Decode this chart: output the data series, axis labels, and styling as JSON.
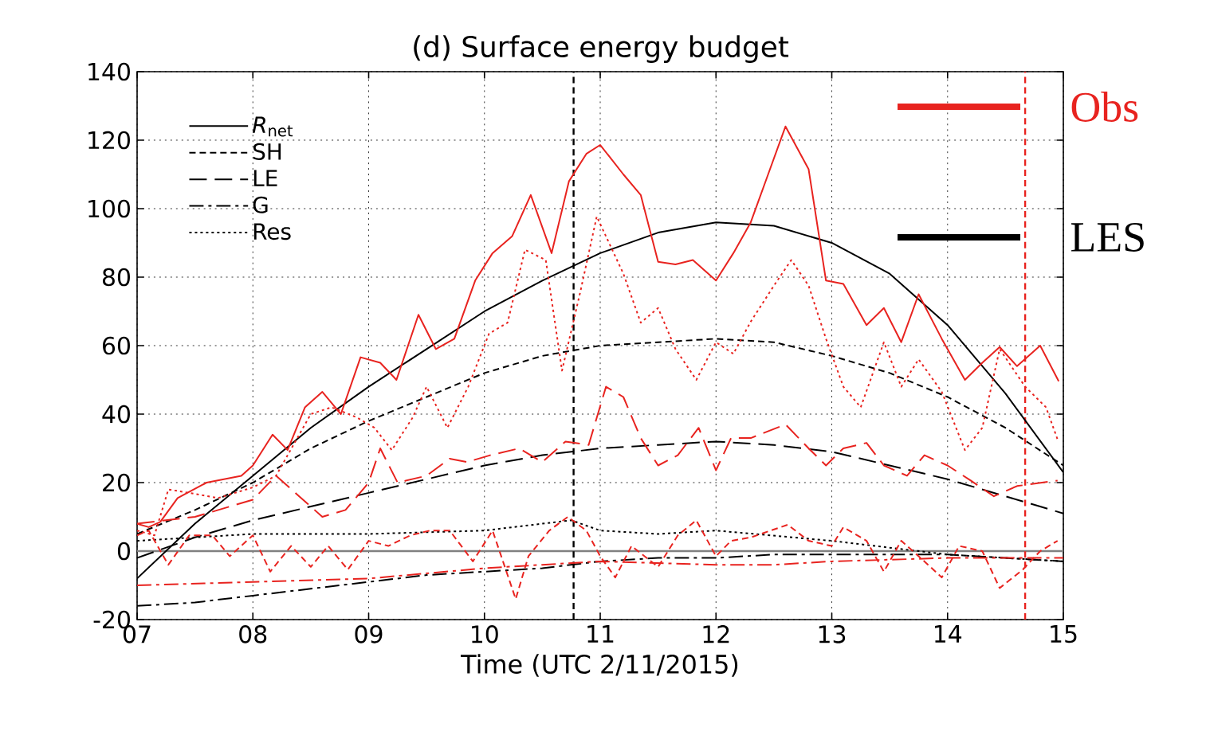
{
  "chart_data": {
    "type": "line",
    "title": "(d) Surface energy budget",
    "xlabel": "Time (UTC 2/11/2015)",
    "xlim": [
      7,
      15
    ],
    "ylim": [
      -20,
      140
    ],
    "xticks": [
      {
        "value": 7,
        "label": "07"
      },
      {
        "value": 8,
        "label": "08"
      },
      {
        "value": 9,
        "label": "09"
      },
      10,
      11,
      12,
      13,
      14,
      15
    ],
    "yticks": [
      -20,
      0,
      20,
      40,
      60,
      80,
      100,
      120,
      140
    ],
    "grid": true,
    "legend": "top left",
    "annotations": [
      "Obs",
      "LES"
    ],
    "ref_lines": [
      {
        "axis": "y",
        "value": 0,
        "color": "#808080",
        "line_style": "solid"
      },
      {
        "axis": "x",
        "value": 10.77,
        "color": "#000000",
        "line_style": "dashed"
      },
      {
        "axis": "x",
        "value": 14.67,
        "color": "#e8231f",
        "line_style": "dashed"
      }
    ],
    "series": [
      {
        "name": "*R*$_{net}$",
        "color": "#000000",
        "line_style": "solid",
        "x": [
          7,
          7.5,
          8,
          8.5,
          9,
          9.5,
          10,
          10.5,
          11,
          11.5,
          12,
          12.5,
          13,
          13.5,
          14,
          14.5,
          15
        ],
        "values": [
          -8,
          8,
          22,
          36,
          48,
          59,
          70,
          79,
          87,
          93,
          96,
          95,
          90,
          81,
          66,
          46,
          23
        ]
      },
      {
        "name": "SH",
        "color": "#000000",
        "line_style": "dashed",
        "x": [
          7,
          7.5,
          8,
          8.5,
          9,
          9.5,
          10,
          10.5,
          11,
          11.5,
          12,
          12.5,
          13,
          13.5,
          14,
          14.5,
          15
        ],
        "values": [
          5,
          12,
          20,
          30,
          38,
          45,
          52,
          57,
          60,
          61,
          62,
          61,
          57,
          52,
          45,
          36,
          25
        ]
      },
      {
        "name": "LE",
        "color": "#000000",
        "line_style": "longdashed",
        "x": [
          7,
          7.5,
          8,
          8.5,
          9,
          9.5,
          10,
          10.5,
          11,
          11.5,
          12,
          12.5,
          13,
          13.5,
          14,
          14.5,
          15
        ],
        "values": [
          -2,
          4,
          9,
          13,
          17,
          21,
          25,
          28,
          30,
          31,
          32,
          31,
          29,
          25,
          21,
          16,
          11
        ]
      },
      {
        "name": "G",
        "color": "#000000",
        "line_style": "dashdot",
        "x": [
          7,
          7.5,
          8,
          8.5,
          9,
          9.5,
          10,
          10.5,
          11,
          11.5,
          12,
          12.5,
          13,
          13.5,
          14,
          14.5,
          15
        ],
        "values": [
          -16,
          -15,
          -13,
          -11,
          -9,
          -7,
          -6,
          -5,
          -3,
          -2,
          -2,
          -1,
          -1,
          -1,
          -1,
          -2,
          -3
        ]
      },
      {
        "name": "Res",
        "color": "#000000",
        "line_style": "dotted",
        "x": [
          7,
          8,
          9,
          10,
          10.75,
          11,
          11.5,
          12,
          13,
          14,
          15
        ],
        "values": [
          3,
          5,
          5,
          6,
          9,
          6,
          5,
          6,
          3,
          -1,
          -3
        ]
      },
      {
        "color": "#e8231f",
        "line_style": "solid",
        "x": [
          7,
          7.1,
          7.2,
          7.35,
          7.6,
          7.9,
          8.0,
          8.17,
          8.3,
          8.45,
          8.6,
          8.76,
          8.93,
          9.1,
          9.24,
          9.43,
          9.58,
          9.74,
          9.92,
          10.07,
          10.24,
          10.4,
          10.58,
          10.73,
          10.88,
          11.0,
          11.2,
          11.35,
          11.5,
          11.65,
          11.8,
          12.0,
          12.15,
          12.3,
          12.45,
          12.6,
          12.8,
          12.95,
          13.1,
          13.3,
          13.45,
          13.6,
          13.75,
          13.95,
          14.15,
          14.3,
          14.45,
          14.6,
          14.8,
          14.96
        ],
        "values": [
          8,
          7,
          8.5,
          15.5,
          20,
          22,
          25,
          34,
          29.5,
          42,
          46.5,
          40,
          56.6,
          55,
          50,
          69,
          59,
          62,
          79,
          87,
          92,
          104,
          87,
          108,
          116,
          118.6,
          110,
          104,
          84.5,
          83.7,
          85,
          79,
          87,
          96,
          110,
          124,
          111.5,
          79,
          78,
          66,
          71,
          61,
          75,
          62,
          50,
          55,
          59.6,
          54,
          60,
          49.6
        ]
      },
      {
        "color": "#e8231f",
        "line_style": "dashed",
        "x": [
          7.0,
          7.1,
          7.27,
          7.45,
          7.65,
          7.8,
          8.0,
          8.15,
          8.33,
          8.5,
          8.65,
          8.82,
          9.0,
          9.17,
          9.36,
          9.53,
          9.7,
          9.9,
          10.07,
          10.27,
          10.38,
          10.56,
          10.72,
          10.88,
          11.0,
          11.13,
          11.27,
          11.5,
          11.67,
          11.83,
          12.0,
          12.13,
          12.3,
          12.62,
          12.8,
          13.0,
          13.1,
          13.3,
          13.45,
          13.6,
          13.8,
          13.95,
          14.1,
          14.3,
          14.45,
          14.65,
          14.8,
          14.95
        ],
        "values": [
          4.6,
          6,
          -4,
          4.6,
          4.6,
          -1.5,
          4.6,
          -6,
          1.5,
          -4.6,
          1.5,
          -5.4,
          3,
          1.5,
          4.6,
          6,
          6,
          -3,
          6,
          -14,
          -1.5,
          6,
          10,
          6,
          -1.5,
          -7.7,
          1.5,
          -4.6,
          4.6,
          9,
          -1.5,
          3,
          4,
          7.7,
          3,
          1.5,
          7,
          3,
          -6,
          3,
          -3,
          -7.7,
          1.5,
          0,
          -10.8,
          -5.4,
          0,
          3
        ]
      },
      {
        "color": "#e8231f",
        "line_style": "longdashed",
        "x": [
          7,
          7.5,
          8,
          8.2,
          8.4,
          8.6,
          8.8,
          9.0,
          9.1,
          9.25,
          9.5,
          9.7,
          9.85,
          10.05,
          10.3,
          10.5,
          10.7,
          10.9,
          11.05,
          11.2,
          11.35,
          11.5,
          11.67,
          11.85,
          12.0,
          12.13,
          12.3,
          12.6,
          12.8,
          12.95,
          13.1,
          13.3,
          13.45,
          13.65,
          13.8,
          14.0,
          14.2,
          14.4,
          14.6,
          14.95
        ],
        "values": [
          8,
          10,
          15,
          22,
          16,
          10,
          12,
          20,
          30,
          20,
          22,
          27,
          26,
          28,
          30,
          26,
          32,
          31,
          48,
          45,
          33,
          25,
          28,
          36,
          23.6,
          33,
          33,
          37,
          30,
          25,
          30,
          31.6,
          25,
          22,
          28,
          25,
          20.6,
          16,
          19,
          20.6
        ]
      },
      {
        "color": "#e8231f",
        "line_style": "dashdot",
        "x": [
          7,
          8,
          9,
          10,
          10.5,
          11,
          12,
          12.5,
          13,
          14,
          15
        ],
        "values": [
          -10,
          -9,
          -8,
          -5,
          -4,
          -3,
          -4,
          -4,
          -3,
          -2,
          -2
        ]
      },
      {
        "color": "#e8231f",
        "line_style": "dotted",
        "x": [
          7.0,
          7.15,
          7.27,
          7.45,
          7.7,
          8.0,
          8.2,
          8.5,
          8.68,
          8.9,
          9.05,
          9.2,
          9.38,
          9.5,
          9.68,
          9.86,
          10.04,
          10.2,
          10.35,
          10.53,
          10.67,
          10.83,
          10.97,
          11.2,
          11.35,
          11.5,
          11.65,
          11.83,
          12.0,
          12.15,
          12.3,
          12.5,
          12.65,
          12.8,
          12.95,
          13.1,
          13.25,
          13.45,
          13.6,
          13.75,
          13.95,
          14.15,
          14.3,
          14.45,
          14.67,
          14.85,
          14.95
        ],
        "values": [
          6,
          4.6,
          18,
          17,
          15.5,
          18.6,
          22,
          40,
          42,
          39,
          36,
          29.5,
          39,
          48,
          36,
          48,
          63.5,
          66.7,
          88,
          85,
          52.7,
          76,
          97.7,
          81,
          66.7,
          71,
          59,
          50,
          61,
          57.6,
          67,
          77.5,
          85,
          77.5,
          62,
          48,
          42,
          61,
          48,
          56,
          46.5,
          29.5,
          36,
          59,
          48,
          42,
          32.6
        ]
      }
    ]
  }
}
